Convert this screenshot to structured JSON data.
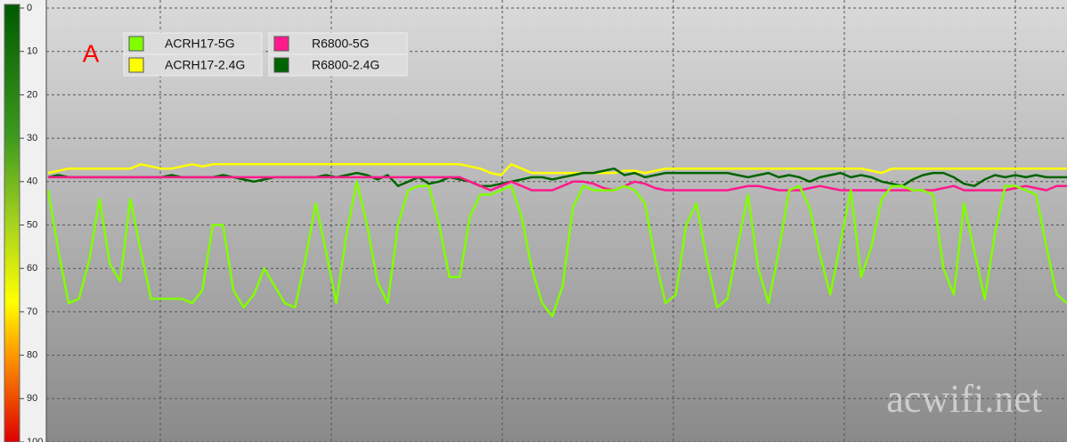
{
  "chart_data": {
    "type": "line",
    "annotation": "A",
    "watermark": "acwifi.net",
    "ylim": [
      0,
      100
    ],
    "y_inverted": true,
    "yticks": [
      0,
      10,
      20,
      30,
      40,
      50,
      60,
      70,
      80,
      90,
      100
    ],
    "grid": true,
    "legend_position": "top-left",
    "series": [
      {
        "name": "ACRH17-5G",
        "color": "#80ff00",
        "values": [
          42,
          56,
          68,
          67,
          58,
          44,
          59,
          63,
          44,
          56,
          67,
          67,
          67,
          67,
          68,
          65,
          50,
          50,
          65,
          69,
          66,
          60,
          64,
          68,
          69,
          58,
          45,
          56,
          68,
          52,
          40,
          50,
          63,
          68,
          50,
          42,
          41,
          41,
          50,
          62,
          62,
          48,
          43,
          43,
          42,
          41,
          48,
          60,
          68,
          71,
          64,
          46,
          41,
          42,
          42,
          42,
          41,
          42,
          45,
          58,
          68,
          66,
          50,
          45,
          58,
          69,
          67,
          55,
          43,
          60,
          68,
          56,
          42,
          41,
          46,
          57,
          66,
          54,
          42,
          62,
          55,
          44,
          41,
          41,
          42,
          42,
          43,
          60,
          66,
          45,
          56,
          67,
          52,
          41,
          41,
          42,
          43,
          55,
          66,
          68
        ]
      },
      {
        "name": "ACRH17-2.4G",
        "color": "#ffff00",
        "values": [
          38,
          37.5,
          37,
          37,
          37,
          37,
          37,
          37,
          37,
          36,
          36.5,
          37,
          37,
          36.5,
          36,
          36.5,
          36,
          36,
          36,
          36,
          36,
          36,
          36,
          36,
          36,
          36,
          36,
          36,
          36,
          36,
          36,
          36,
          36,
          36,
          36,
          36,
          36,
          36,
          36,
          36,
          36,
          36.5,
          37,
          38,
          38.5,
          36,
          37,
          38,
          38,
          38,
          38,
          38,
          38,
          38,
          38,
          38,
          37.5,
          37.5,
          38,
          37.5,
          37,
          37,
          37,
          37,
          37,
          37,
          37,
          37,
          37,
          37,
          37,
          37,
          37,
          37,
          37,
          37,
          37,
          37,
          37,
          37,
          37.5,
          38,
          37,
          37,
          37,
          37,
          37,
          37,
          37,
          37,
          37,
          37,
          37,
          37,
          37,
          37,
          37,
          37,
          37,
          37
        ]
      },
      {
        "name": "R6800-5G",
        "color": "#ff1a8c",
        "values": [
          39,
          39,
          39,
          39,
          39,
          39,
          39,
          39,
          39,
          39,
          39,
          39,
          39,
          39,
          39,
          39,
          39,
          39,
          39,
          39,
          39,
          39,
          39,
          39,
          39,
          39,
          39,
          39,
          39,
          39,
          39,
          39,
          39,
          39,
          39,
          39,
          39,
          39,
          39,
          39,
          39,
          40,
          41,
          42,
          41,
          40,
          41,
          42,
          42,
          42,
          41,
          40,
          40,
          40.5,
          41.5,
          42,
          41,
          40,
          40.5,
          41.5,
          42,
          42,
          42,
          42,
          42,
          42,
          42,
          41.5,
          41,
          41,
          41.5,
          42,
          42,
          42,
          41.5,
          41,
          41.5,
          42,
          42,
          42,
          42,
          42,
          42,
          42,
          42,
          42,
          42,
          41.5,
          41,
          42,
          42,
          42,
          42,
          42,
          41.5,
          41,
          41.5,
          42,
          41,
          41
        ]
      },
      {
        "name": "R6800-2.4G",
        "color": "#006400",
        "values": [
          39,
          38.5,
          39,
          39,
          39,
          39,
          39,
          39,
          39,
          39,
          39,
          39,
          38.5,
          39,
          39,
          39,
          39,
          38.5,
          39,
          39.5,
          40,
          39.5,
          39,
          39,
          39,
          39,
          39,
          38.5,
          39,
          38.5,
          38,
          38.5,
          39.5,
          38.5,
          41,
          40,
          39,
          40.5,
          40,
          39,
          39.5,
          40,
          41,
          41,
          40.5,
          40,
          39.5,
          39,
          39,
          39.5,
          39,
          38.5,
          38,
          38,
          37.5,
          37,
          38.5,
          38,
          39,
          38.5,
          38,
          38,
          38,
          38,
          38,
          38,
          38,
          38.5,
          39,
          38.5,
          38,
          39,
          38.5,
          39,
          40,
          39,
          38.5,
          38,
          39,
          38.5,
          39,
          40,
          40.5,
          41,
          39.5,
          38.5,
          38,
          38,
          39,
          40.5,
          41,
          39.5,
          38.5,
          39,
          38.5,
          39,
          38.5,
          39,
          39,
          39
        ]
      }
    ]
  }
}
